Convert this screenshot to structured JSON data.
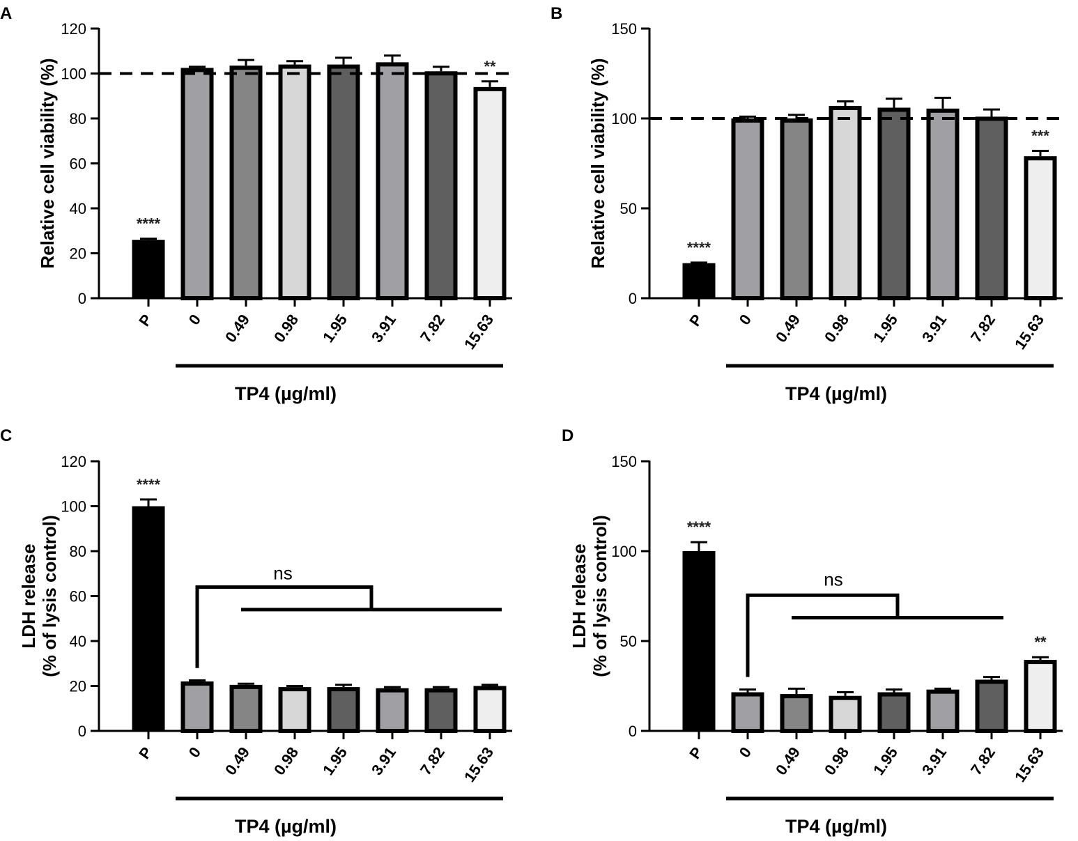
{
  "chart_data": [
    {
      "type": "bar",
      "panel": "A",
      "ylabel": "Relative cell viability (%)",
      "xlabel": "TP4 (µg/ml)",
      "ylim": [
        0,
        120
      ],
      "yticks": [
        0,
        20,
        40,
        60,
        80,
        100,
        120
      ],
      "categories": [
        "P",
        "0",
        "0.49",
        "0.98",
        "1.95",
        "3.91",
        "7.82",
        "15.63"
      ],
      "values": [
        26,
        102.5,
        103.5,
        104,
        104,
        105,
        101,
        94
      ],
      "errors": [
        0.5,
        0.5,
        2.5,
        1.5,
        3,
        3,
        2,
        2.5
      ],
      "significance": [
        "****",
        "",
        "",
        "",
        "",
        "",
        "",
        "**"
      ],
      "reference_line": 100,
      "bracket": null
    },
    {
      "type": "bar",
      "panel": "B",
      "ylabel": "Relative cell viability (%)",
      "xlabel": "TP4 (µg/ml)",
      "ylim": [
        0,
        150
      ],
      "yticks": [
        0,
        50,
        100,
        150
      ],
      "categories": [
        "P",
        "0",
        "0.49",
        "0.98",
        "1.95",
        "3.91",
        "7.82",
        "15.63"
      ],
      "values": [
        19.5,
        100,
        100,
        107,
        106,
        105.5,
        101,
        79
      ],
      "errors": [
        0.3,
        1,
        2,
        2.5,
        5,
        6,
        4,
        3
      ],
      "significance": [
        "****",
        "",
        "",
        "",
        "",
        "",
        "",
        "***"
      ],
      "reference_line": 100,
      "bracket": null
    },
    {
      "type": "bar",
      "panel": "C",
      "ylabel": "LDH release",
      "ylabel2": "(% of lysis control)",
      "xlabel": "TP4 (µg/ml)",
      "ylim": [
        0,
        120
      ],
      "yticks": [
        0,
        20,
        40,
        60,
        80,
        100,
        120
      ],
      "categories": [
        "P",
        "0",
        "0.49",
        "0.98",
        "1.95",
        "3.91",
        "7.82",
        "15.63"
      ],
      "values": [
        100,
        22,
        20.5,
        19.5,
        19.5,
        19,
        19,
        20
      ],
      "errors": [
        3,
        0.5,
        0.5,
        0.5,
        1,
        0.5,
        0.5,
        0.5
      ],
      "significance": [
        "****",
        "",
        "",
        "",
        "",
        "",
        "",
        ""
      ],
      "reference_line": null,
      "bracket": {
        "label": "ns",
        "from": 1,
        "to_start": 2,
        "to_end": 7,
        "bottom": 28,
        "top": 64,
        "level": 54,
        "label_y": 70
      }
    },
    {
      "type": "bar",
      "panel": "D",
      "ylabel": "LDH release",
      "ylabel2": "(% of lysis control)",
      "xlabel": "TP4 (µg/ml)",
      "ylim": [
        0,
        150
      ],
      "yticks": [
        0,
        50,
        100,
        150
      ],
      "categories": [
        "P",
        "0",
        "0.49",
        "0.98",
        "1.95",
        "3.91",
        "7.82",
        "15.63"
      ],
      "values": [
        100,
        21.5,
        20.5,
        19.5,
        21.5,
        23,
        28.5,
        39.5
      ],
      "errors": [
        5,
        1.5,
        3,
        2,
        1.5,
        0.5,
        1.5,
        1.5
      ],
      "significance": [
        "****",
        "",
        "",
        "",
        "",
        "",
        "",
        "**"
      ],
      "reference_line": null,
      "bracket": {
        "label": "ns",
        "from": 1,
        "to_start": 2,
        "to_end": 6,
        "bottom": 30,
        "top": 75.5,
        "level": 63,
        "label_y": 84
      }
    }
  ],
  "colors": {
    "bars": [
      "#000000",
      "#a0a0a4",
      "#858585",
      "#d6d7d6",
      "#5f5f5f",
      "#a0a0a4",
      "#5f5f5f",
      "#eeeeee"
    ],
    "outline": "#000000"
  }
}
